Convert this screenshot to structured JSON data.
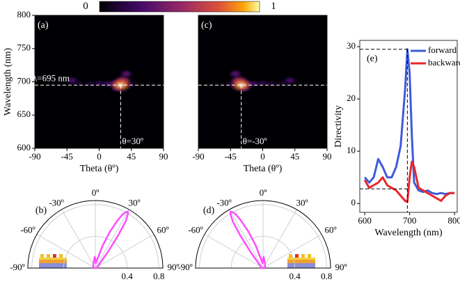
{
  "chart_data": [
    {
      "type": "colorbar",
      "lim": [
        0,
        1
      ],
      "ticks": [
        0,
        1
      ]
    },
    {
      "type": "heatmap",
      "label": "(a)",
      "xlabel": "Theta (θº)",
      "ylabel": "Wavelength (nm)",
      "xlim": [
        -90,
        90
      ],
      "ylim": [
        600,
        800
      ],
      "xticks": [
        -90,
        -45,
        0,
        45,
        90
      ],
      "yticks": [
        600,
        650,
        700,
        750,
        800
      ],
      "x": [
        30,
        33,
        38,
        22,
        12,
        0,
        -12,
        -28,
        -38,
        45,
        26
      ],
      "y": [
        695,
        701,
        712,
        697,
        697,
        698,
        697,
        698,
        702,
        696,
        690
      ],
      "values": [
        1,
        0.7,
        0.35,
        0.35,
        0.25,
        0.2,
        0.15,
        0.12,
        0.3,
        0.15,
        0.3
      ],
      "hline": 695,
      "vline": 30,
      "hline_label": "λ=695 nm",
      "vline_label": "θ=30º"
    },
    {
      "type": "heatmap",
      "label": "(c)",
      "xlabel": "Theta (θº)",
      "xlim": [
        -90,
        90
      ],
      "ylim": [
        600,
        800
      ],
      "xticks": [
        -90,
        -45,
        0,
        45,
        90
      ],
      "x": [
        -30,
        -33,
        -38,
        -22,
        -12,
        0,
        12,
        28,
        38,
        -45,
        -26
      ],
      "y": [
        695,
        701,
        712,
        697,
        697,
        698,
        697,
        698,
        702,
        696,
        690
      ],
      "values": [
        1,
        0.7,
        0.35,
        0.35,
        0.25,
        0.2,
        0.15,
        0.12,
        0.3,
        0.15,
        0.3
      ],
      "hline": 695,
      "vline": -30,
      "vline_label": "θ=-30º"
    },
    {
      "type": "polar",
      "label": "(b)",
      "color": "#ff4dff",
      "thetalim": [
        -90,
        90
      ],
      "rlim": [
        0,
        0.85
      ],
      "thetaticks": [
        {
          "value": -90,
          "label": "-90º"
        },
        {
          "value": -60,
          "label": "-60º"
        },
        {
          "value": -30,
          "label": "-30º"
        },
        {
          "value": 0,
          "label": "0º"
        },
        {
          "value": 30,
          "label": "30º"
        },
        {
          "value": 60,
          "label": "60º"
        },
        {
          "value": 90,
          "label": "90º"
        }
      ],
      "rticks": [
        0.4,
        0.8
      ],
      "theta": [
        -90,
        -60,
        -30,
        -10,
        -3,
        0,
        5,
        12,
        18,
        22,
        25,
        27,
        29,
        30,
        31,
        33,
        35,
        38,
        42,
        50,
        60,
        90
      ],
      "r": [
        0.02,
        0.03,
        0.05,
        0.1,
        0.14,
        0.12,
        0.06,
        0.1,
        0.3,
        0.5,
        0.66,
        0.76,
        0.81,
        0.82,
        0.8,
        0.7,
        0.5,
        0.25,
        0.1,
        0.05,
        0.03,
        0.02
      ]
    },
    {
      "type": "polar",
      "label": "(d)",
      "color": "#ff4dff",
      "thetalim": [
        -90,
        90
      ],
      "rlim": [
        0,
        0.85
      ],
      "thetaticks": [
        {
          "value": -90,
          "label": "-90º"
        },
        {
          "value": -60,
          "label": "-60º"
        },
        {
          "value": -30,
          "label": "-30º"
        },
        {
          "value": 0,
          "label": "0º"
        },
        {
          "value": 30,
          "label": "30º"
        },
        {
          "value": 60,
          "label": "60º"
        },
        {
          "value": 90,
          "label": "90º"
        }
      ],
      "rticks": [
        0.4,
        0.8
      ],
      "theta": [
        90,
        60,
        30,
        10,
        3,
        0,
        -5,
        -12,
        -18,
        -22,
        -25,
        -27,
        -29,
        -30,
        -31,
        -33,
        -35,
        -38,
        -42,
        -50,
        -60,
        -90
      ],
      "r": [
        0.02,
        0.03,
        0.05,
        0.1,
        0.14,
        0.12,
        0.06,
        0.1,
        0.3,
        0.5,
        0.66,
        0.76,
        0.81,
        0.82,
        0.8,
        0.7,
        0.5,
        0.25,
        0.1,
        0.05,
        0.03,
        0.02
      ]
    },
    {
      "type": "line",
      "label": "(e)",
      "xlabel": "Wavelength (nm)",
      "ylabel": "Directivity",
      "xlim": [
        589,
        806
      ],
      "ylim": [
        -1.7,
        31.2
      ],
      "xticks": [
        600,
        700,
        800
      ],
      "yticks": [
        0,
        10,
        20,
        30
      ],
      "x": [
        600,
        610,
        620,
        630,
        640,
        650,
        660,
        670,
        680,
        690,
        695,
        700,
        705,
        710,
        720,
        730,
        740,
        750,
        760,
        770,
        780,
        790,
        800
      ],
      "series": [
        {
          "name": "forward",
          "color": "#3b5bdb",
          "values": [
            5,
            4,
            5,
            8.5,
            7,
            5,
            5,
            7,
            11,
            22,
            29.5,
            25,
            13,
            4,
            2.5,
            2.2,
            2.5,
            2,
            1.8,
            2,
            1.8,
            2,
            2
          ]
        },
        {
          "name": "backward",
          "color": "#e8262b",
          "values": [
            4.5,
            3,
            3.5,
            4,
            5,
            3.5,
            3,
            2.5,
            1.5,
            0.5,
            0.3,
            5,
            8,
            7,
            3,
            2.5,
            2,
            1.5,
            1,
            0.5,
            1.5,
            2,
            2
          ]
        }
      ],
      "vline": 695,
      "hlines": [
        29.5,
        2.8
      ],
      "legend": "upper right"
    }
  ]
}
